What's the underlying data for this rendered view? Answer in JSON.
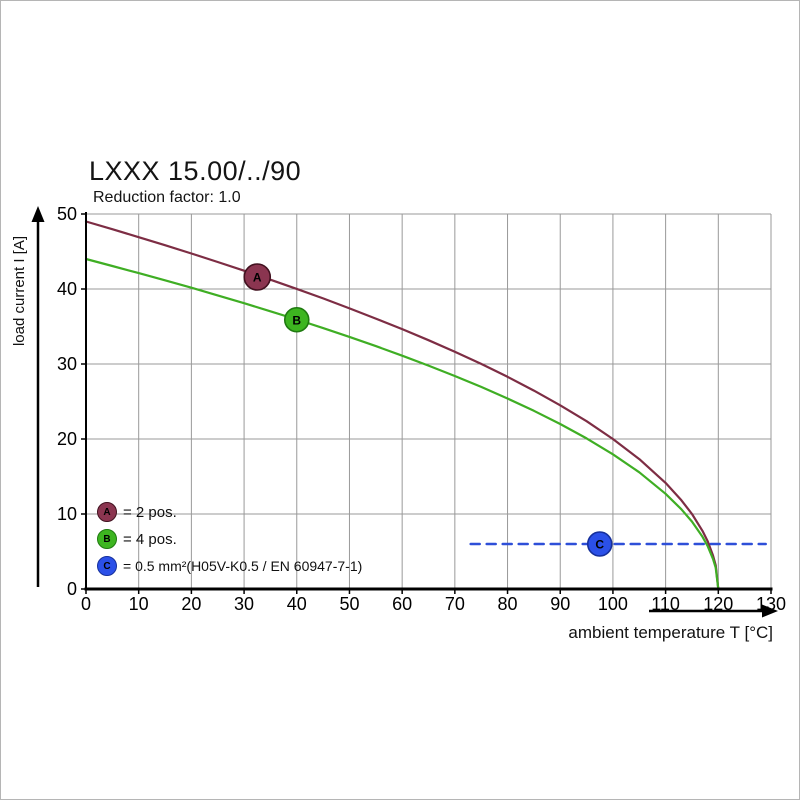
{
  "chart_data": {
    "type": "line",
    "title": "LXXX 15.00/../90",
    "subtitle": "Reduction factor: 1.0",
    "xlabel": "ambient temperature T [°C]",
    "ylabel": "load current I [A]",
    "xlim": [
      0,
      130
    ],
    "ylim": [
      0,
      50
    ],
    "xticks": [
      0,
      10,
      20,
      30,
      40,
      50,
      60,
      70,
      80,
      90,
      100,
      110,
      120,
      130
    ],
    "yticks": [
      0,
      10,
      20,
      30,
      40,
      50
    ],
    "grid": true,
    "grid_color": "#999999",
    "axis_color": "#000000",
    "legend_position": "bottom-left-inside",
    "series": [
      {
        "name": "A",
        "legend": "= 2 pos.",
        "color": "#7d2d44",
        "style": "solid",
        "marker_fill": "#8b3550",
        "marker_stroke": "#41111f",
        "marker": {
          "x": 32.5,
          "y": 41.6,
          "letter": "A",
          "r": 13
        },
        "points": [
          [
            0,
            49.0
          ],
          [
            5,
            47.97
          ],
          [
            10,
            46.91
          ],
          [
            15,
            45.84
          ],
          [
            20,
            44.73
          ],
          [
            25,
            43.6
          ],
          [
            30,
            42.44
          ],
          [
            35,
            41.24
          ],
          [
            40,
            40.01
          ],
          [
            45,
            38.74
          ],
          [
            50,
            37.42
          ],
          [
            55,
            36.06
          ],
          [
            60,
            34.65
          ],
          [
            65,
            33.17
          ],
          [
            70,
            31.63
          ],
          [
            75,
            30.01
          ],
          [
            80,
            28.29
          ],
          [
            85,
            26.46
          ],
          [
            90,
            24.5
          ],
          [
            95,
            22.37
          ],
          [
            100,
            20.0
          ],
          [
            105,
            17.32
          ],
          [
            110,
            14.15
          ],
          [
            113,
            11.83
          ],
          [
            115,
            10.0
          ],
          [
            117,
            7.75
          ],
          [
            118,
            6.33
          ],
          [
            119,
            4.47
          ],
          [
            119.5,
            3.16
          ],
          [
            120,
            0
          ]
        ]
      },
      {
        "name": "B",
        "legend": "= 4 pos.",
        "color": "#3fae24",
        "style": "solid",
        "marker_fill": "#3db520",
        "marker_stroke": "#1f7a10",
        "marker": {
          "x": 40,
          "y": 35.9,
          "letter": "B",
          "r": 12
        },
        "points": [
          [
            0,
            44.0
          ],
          [
            5,
            43.07
          ],
          [
            10,
            42.12
          ],
          [
            15,
            41.16
          ],
          [
            20,
            40.17
          ],
          [
            25,
            39.15
          ],
          [
            30,
            38.11
          ],
          [
            35,
            37.03
          ],
          [
            40,
            35.93
          ],
          [
            45,
            34.79
          ],
          [
            50,
            33.61
          ],
          [
            55,
            32.38
          ],
          [
            60,
            31.11
          ],
          [
            65,
            29.79
          ],
          [
            70,
            28.4
          ],
          [
            75,
            26.94
          ],
          [
            80,
            25.4
          ],
          [
            85,
            23.76
          ],
          [
            90,
            22.0
          ],
          [
            95,
            20.08
          ],
          [
            100,
            17.96
          ],
          [
            105,
            15.56
          ],
          [
            110,
            12.7
          ],
          [
            113,
            10.63
          ],
          [
            115,
            8.98
          ],
          [
            117,
            6.96
          ],
          [
            118,
            5.68
          ],
          [
            119,
            4.02
          ],
          [
            119.5,
            2.84
          ],
          [
            120,
            0
          ]
        ]
      },
      {
        "name": "C",
        "legend": "= 0.5 mm²(H05V-K0.5 / EN 60947-7-1)",
        "color": "#2e4fd8",
        "style": "dashed",
        "marker_fill": "#2b50e8",
        "marker_stroke": "#16309c",
        "marker": {
          "x": 97.5,
          "y": 6,
          "letter": "C",
          "r": 12
        },
        "points": [
          [
            73,
            6
          ],
          [
            129,
            6
          ]
        ]
      }
    ]
  }
}
